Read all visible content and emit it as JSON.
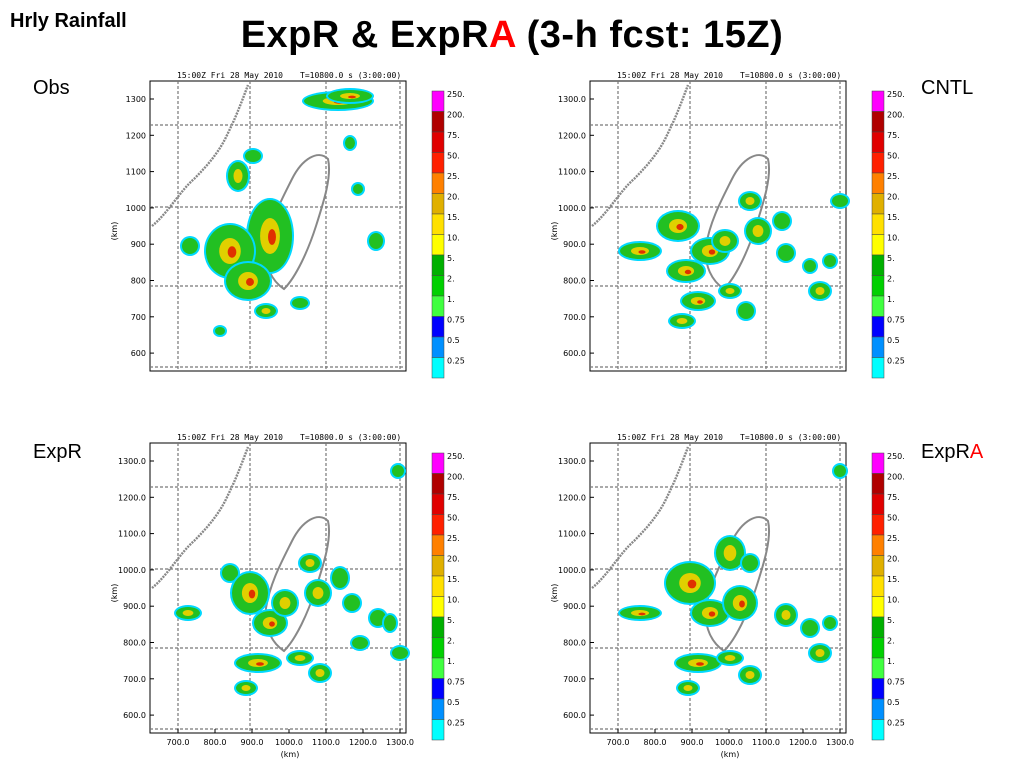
{
  "corner_label": "Hrly Rainfall",
  "title": {
    "main": "ExpR & ExpR",
    "accent": "A",
    "suffix": " (3-h fcst: 15Z)"
  },
  "panel_header": {
    "time": "15:00Z Fri 28 May 2010",
    "tinfo": "T=10800.0 s (3:00:00)"
  },
  "y_ticks": [
    "1300.0",
    "1200.0",
    "1100.0",
    "1000.0",
    "900.0",
    "800.0",
    "700.0",
    "600.0"
  ],
  "y_ticks_obs": [
    "1300",
    "1200",
    "1100",
    "1000",
    "900",
    "800",
    "700",
    "600"
  ],
  "x_ticks": [
    "700.0",
    "800.0",
    "900.0",
    "1000.0",
    "1100.0",
    "1200.0",
    "1300.0"
  ],
  "axis_unit": "(km)",
  "colorbar": {
    "labels": [
      "250.",
      "200.",
      "75.",
      "50.",
      "25.",
      "20.",
      "15.",
      "10.",
      "5.",
      "2.",
      "1.",
      "0.75",
      "0.5",
      "0.25"
    ],
    "colors": [
      "#ff00ff",
      "#b00000",
      "#e00000",
      "#ff2000",
      "#ff8000",
      "#e0b000",
      "#ffe000",
      "#ffff00",
      "#00b000",
      "#00d000",
      "#40ff40",
      "#0000ff",
      "#0090ff",
      "#00ffff"
    ]
  },
  "panels": [
    {
      "id": "obs",
      "label": "Obs",
      "accent": ""
    },
    {
      "id": "cntl",
      "label": "CNTL",
      "accent": ""
    },
    {
      "id": "expr",
      "label": "ExpR",
      "accent": ""
    },
    {
      "id": "expra",
      "label": "ExpR",
      "accent": "A"
    }
  ]
}
